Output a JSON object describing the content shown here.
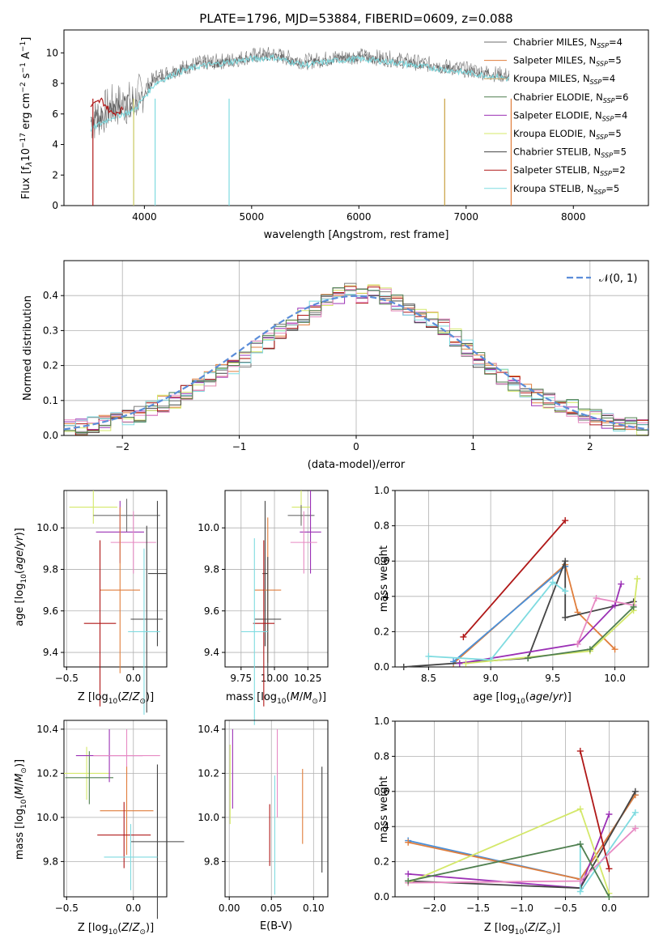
{
  "panels": {
    "spectrum": {
      "title": "PLATE=1796, MJD=53884, FIBERID=0609, z=0.088",
      "xlabel": "wavelength [Angstrom, rest frame]",
      "ylabel": "Flux [f_λ 10^-17 erg cm^-2 s^-1 A^-1]",
      "xlim": [
        3250,
        8700
      ],
      "ylim": [
        0,
        11.5
      ],
      "xticks": [
        4000,
        5000,
        6000,
        7000,
        8000
      ],
      "yticks": [
        0,
        2,
        4,
        6,
        8,
        10
      ],
      "legend_position": "top-right",
      "legend": [
        {
          "label": "Chabrier MILES, N",
          "sub": "SSP",
          "tail": "=4",
          "color": "#6e6e6e"
        },
        {
          "label": "Salpeter MILES, N",
          "sub": "SSP",
          "tail": "=5",
          "color": "#e07e3c"
        },
        {
          "label": "Kroupa MILES, N",
          "sub": "SSP",
          "tail": "=4",
          "color": "#d8a060"
        },
        {
          "label": "Chabrier ELODIE, N",
          "sub": "SSP",
          "tail": "=6",
          "color": "#4f7f4f"
        },
        {
          "label": "Salpeter ELODIE, N",
          "sub": "SSP",
          "tail": "=4",
          "color": "#9b30b5"
        },
        {
          "label": "Kroupa ELODIE, N",
          "sub": "SSP",
          "tail": "=5",
          "color": "#d4e86a"
        },
        {
          "label": "Chabrier STELIB, N",
          "sub": "SSP",
          "tail": "=5",
          "color": "#444444"
        },
        {
          "label": "Salpeter STELIB, N",
          "sub": "SSP",
          "tail": "=2",
          "color": "#b01818"
        },
        {
          "label": "Kroupa STELIB, N",
          "sub": "SSP",
          "tail": "=5",
          "color": "#7fdbe0"
        }
      ]
    },
    "histogram": {
      "xlabel": "(data-model)/error",
      "ylabel": "Normed distribution",
      "xlim": [
        -2.5,
        2.5
      ],
      "ylim": [
        0,
        0.5
      ],
      "xticks": [
        -2,
        -1,
        0,
        1,
        2
      ],
      "xticklabels": [
        "−2",
        "−1",
        "0",
        "1",
        "2"
      ],
      "yticks": [
        0.0,
        0.1,
        0.2,
        0.3,
        0.4
      ],
      "yticklabels": [
        "0.0",
        "0.1",
        "0.2",
        "0.3",
        "0.4"
      ],
      "legend_label": "𝒩(0, 1)",
      "grid": true
    },
    "z_age": {
      "xlabel": "Z [log10(Z/Z⊙)]",
      "ylabel": "age [log10(age/yr)]",
      "xlim": [
        -0.52,
        0.25
      ],
      "ylim": [
        9.33,
        10.18
      ],
      "xticks": [
        -0.5,
        0.0
      ],
      "xticklabels": [
        "−0.5",
        "0.0"
      ],
      "yticks": [
        9.4,
        9.6,
        9.8,
        10.0
      ],
      "yticklabels": [
        "9.4",
        "9.6",
        "9.8",
        "10.0"
      ]
    },
    "mass_age": {
      "xlabel": "mass [log10(M/M⊙)]",
      "xlim": [
        9.63,
        10.4
      ],
      "ylim": [
        9.33,
        10.18
      ],
      "xticks": [
        9.75,
        10.0,
        10.25
      ],
      "xticklabels": [
        "9.75",
        "10.00",
        "10.25"
      ],
      "yticks": [
        9.4,
        9.6,
        9.8,
        10.0
      ],
      "yticklabels": [
        "9.4",
        "9.6",
        "9.8",
        "10.0"
      ]
    },
    "age_weight": {
      "xlabel": "age [log10(age/yr)]",
      "ylabel": "mass weight",
      "xlim": [
        8.23,
        10.27
      ],
      "ylim": [
        0,
        1.0
      ],
      "xticks": [
        8.5,
        9.0,
        9.5,
        10.0
      ],
      "xticklabels": [
        "8.5",
        "9.0",
        "9.5",
        "10.0"
      ],
      "yticks": [
        0,
        0.2,
        0.4,
        0.6,
        0.8,
        1.0
      ],
      "yticklabels": [
        "0.0",
        "0.2",
        "0.4",
        "0.6",
        "0.8",
        "1.0"
      ]
    },
    "z_mass": {
      "xlabel": "Z [log10(Z/Z⊙)]",
      "ylabel": "mass [log10(M/M⊙)]",
      "xlim": [
        -0.52,
        0.25
      ],
      "ylim": [
        9.64,
        10.44
      ],
      "xticks": [
        -0.5,
        0.0
      ],
      "xticklabels": [
        "−0.5",
        "0.0"
      ],
      "yticks": [
        9.8,
        10.0,
        10.2,
        10.4
      ],
      "yticklabels": [
        "9.8",
        "10.0",
        "10.2",
        "10.4"
      ]
    },
    "ebv_mass": {
      "xlabel": "E(B-V)",
      "xlim": [
        -0.005,
        0.117
      ],
      "ylim": [
        9.64,
        10.44
      ],
      "xticks": [
        0.0,
        0.05,
        0.1
      ],
      "xticklabels": [
        "0.00",
        "0.05",
        "0.10"
      ],
      "yticks": [
        9.8,
        10.0,
        10.2,
        10.4
      ],
      "yticklabels": [
        "9.8",
        "10.0",
        "10.2",
        "10.4"
      ]
    },
    "z_weight": {
      "xlabel": "Z [log10(Z/Z⊙)]",
      "ylabel": "mass weight",
      "xlim": [
        -2.45,
        0.45
      ],
      "ylim": [
        0,
        1.0
      ],
      "xticks": [
        -2.0,
        -1.5,
        -1.0,
        -0.5,
        0.0
      ],
      "xticklabels": [
        "−2.0",
        "−1.5",
        "−1.0",
        "−0.5",
        "0.0"
      ],
      "yticks": [
        0,
        0.2,
        0.4,
        0.6,
        0.8,
        1.0
      ],
      "yticklabels": [
        "0.0",
        "0.2",
        "0.4",
        "0.6",
        "0.8",
        "1.0"
      ]
    }
  },
  "chart_data": [
    {
      "type": "line",
      "title": "PLATE=1796, MJD=53884, FIBERID=0609, z=0.088",
      "xlabel": "wavelength [Angstrom, rest frame]",
      "ylabel": "Flux [fλ10−17 erg cm−2 s−1 A−1]",
      "xlim": [
        3250,
        8700
      ],
      "ylim": [
        0,
        11.5
      ],
      "series": [
        {
          "name": "Chabrier MILES, NSSP=4",
          "x": [
            3500,
            3700,
            3900,
            4100,
            4300,
            4500,
            4800,
            5000,
            5200,
            5500,
            5800,
            6000,
            6300,
            6600,
            6900,
            7100,
            7300,
            7400
          ],
          "values": [
            5.5,
            6.5,
            6.8,
            8.4,
            8.9,
            9.3,
            9.5,
            9.8,
            9.9,
            9.4,
            9.7,
            9.8,
            9.6,
            9.3,
            9.0,
            8.8,
            8.6,
            8.5
          ]
        },
        {
          "name": "Chabrier STELIB, NSSP=5",
          "x": [
            3500,
            3700,
            3900,
            4100,
            4300,
            4500,
            4800,
            5000,
            5200,
            5500,
            5800,
            6000,
            6300,
            6600,
            6900,
            7100,
            7300,
            7400
          ],
          "values": [
            5.3,
            6.3,
            6.6,
            8.2,
            8.8,
            9.2,
            9.4,
            9.7,
            9.8,
            9.3,
            9.6,
            9.7,
            9.5,
            9.2,
            8.9,
            8.7,
            8.5,
            8.4
          ]
        },
        {
          "name": "Kroupa STELIB, NSSP=5",
          "x": [
            3500,
            3700,
            3900,
            4100,
            4300,
            4500,
            4800,
            5000,
            5200,
            5500,
            5800,
            6000,
            6300,
            6600,
            6900,
            7100,
            7300,
            7400
          ],
          "values": [
            5.0,
            5.8,
            6.2,
            8.0,
            8.7,
            9.1,
            9.4,
            9.6,
            9.7,
            9.2,
            9.5,
            9.6,
            9.4,
            9.1,
            8.8,
            8.6,
            8.4,
            8.3
          ]
        },
        {
          "name": "Salpeter STELIB, NSSP=2",
          "x": [
            3500,
            3600,
            3700,
            3800
          ],
          "values": [
            6.5,
            6.9,
            6.0,
            6.3
          ]
        }
      ]
    },
    {
      "type": "bar",
      "xlabel": "(data-model)/error",
      "ylabel": "Normed distribution",
      "xlim": [
        -2.5,
        2.5
      ],
      "ylim": [
        0,
        0.5
      ],
      "bin_edges_start": -2.5,
      "bin_width": 0.1,
      "series": [
        {
          "name": "𝒩(0, 1)",
          "function": "normal",
          "mean": 0,
          "sigma": 1
        }
      ],
      "histogram_values": [
        0.02,
        0.025,
        0.03,
        0.035,
        0.045,
        0.05,
        0.06,
        0.075,
        0.09,
        0.1,
        0.12,
        0.14,
        0.16,
        0.18,
        0.2,
        0.22,
        0.25,
        0.27,
        0.3,
        0.32,
        0.34,
        0.36,
        0.38,
        0.4,
        0.42,
        0.4,
        0.41,
        0.4,
        0.38,
        0.36,
        0.34,
        0.33,
        0.31,
        0.28,
        0.25,
        0.22,
        0.2,
        0.17,
        0.15,
        0.13,
        0.11,
        0.1,
        0.09,
        0.08,
        0.06,
        0.05,
        0.045,
        0.035,
        0.03,
        0.025
      ]
    },
    {
      "type": "scatter",
      "xlabel": "Z [log10(Z/Z⊙)]",
      "ylabel": "age [log10(age/yr)]",
      "points": [
        {
          "x": -0.3,
          "y": 10.1,
          "xerr": 0.18,
          "yerr": 0.08,
          "color": "#d4e86a"
        },
        {
          "x": -0.05,
          "y": 10.06,
          "xerr": 0.25,
          "yerr": 0.08,
          "color": "#6e6e6e"
        },
        {
          "x": -0.1,
          "y": 9.98,
          "xerr": 0.18,
          "yerr": 0.15,
          "color": "#9b30b5"
        },
        {
          "x": 0.0,
          "y": 9.93,
          "xerr": 0.17,
          "yerr": 0.15,
          "color": "#e78ac3"
        },
        {
          "x": 0.18,
          "y": 9.78,
          "xerr": 0.07,
          "yerr": 0.35,
          "color": "#444444"
        },
        {
          "x": -0.1,
          "y": 9.7,
          "xerr": 0.15,
          "yerr": 0.4,
          "color": "#e07e3c"
        },
        {
          "x": 0.1,
          "y": 9.56,
          "xerr": 0.12,
          "yerr": 0.45,
          "color": "#444444"
        },
        {
          "x": -0.25,
          "y": 9.54,
          "xerr": 0.12,
          "yerr": 0.4,
          "color": "#b01818"
        },
        {
          "x": 0.08,
          "y": 9.5,
          "xerr": 0.12,
          "yerr": 0.4,
          "color": "#7fdbe0"
        }
      ]
    },
    {
      "type": "scatter",
      "xlabel": "mass [log10(M/M⊙)]",
      "points": [
        {
          "x": 10.2,
          "y": 10.1,
          "xerr": 0.07,
          "yerr": 0.08,
          "color": "#d4e86a"
        },
        {
          "x": 10.2,
          "y": 10.06,
          "xerr": 0.1,
          "yerr": 0.05,
          "color": "#6e6e6e"
        },
        {
          "x": 10.27,
          "y": 9.98,
          "xerr": 0.08,
          "yerr": 0.2,
          "color": "#9b30b5"
        },
        {
          "x": 10.22,
          "y": 9.93,
          "xerr": 0.1,
          "yerr": 0.15,
          "color": "#e78ac3"
        },
        {
          "x": 9.93,
          "y": 9.78,
          "xerr": 0.02,
          "yerr": 0.35,
          "color": "#444444"
        },
        {
          "x": 9.95,
          "y": 9.7,
          "xerr": 0.1,
          "yerr": 0.35,
          "color": "#e07e3c"
        },
        {
          "x": 9.95,
          "y": 9.56,
          "xerr": 0.1,
          "yerr": 0.3,
          "color": "#444444"
        },
        {
          "x": 9.92,
          "y": 9.54,
          "xerr": 0.08,
          "yerr": 0.4,
          "color": "#b01818"
        },
        {
          "x": 9.85,
          "y": 9.5,
          "xerr": 0.1,
          "yerr": 0.45,
          "color": "#7fdbe0"
        }
      ]
    },
    {
      "type": "line",
      "xlabel": "age [log10(age/yr)]",
      "ylabel": "mass weight",
      "xlim": [
        8.23,
        10.27
      ],
      "ylim": [
        0,
        1.0
      ],
      "series": [
        {
          "name": "",
          "color": "#b01818",
          "x": [
            8.78,
            9.6
          ],
          "values": [
            0.17,
            0.83
          ]
        },
        {
          "name": "",
          "color": "#e07e3c",
          "x": [
            8.7,
            9.6,
            9.7,
            10.0
          ],
          "values": [
            0.02,
            0.58,
            0.31,
            0.1
          ]
        },
        {
          "name": "",
          "color": "#4a90d9",
          "x": [
            8.7,
            9.6
          ],
          "values": [
            0.03,
            0.57
          ]
        },
        {
          "name": "",
          "color": "#444444",
          "x": [
            8.3,
            9.3,
            9.6,
            9.6,
            10.15
          ],
          "values": [
            0.0,
            0.05,
            0.6,
            0.28,
            0.37
          ]
        },
        {
          "name": "",
          "color": "#9b30b5",
          "x": [
            8.75,
            9.7,
            10.0,
            10.05
          ],
          "values": [
            0.02,
            0.13,
            0.35,
            0.47
          ]
        },
        {
          "name": "",
          "color": "#7fdbe0",
          "x": [
            8.5,
            9.0,
            9.5,
            9.6
          ],
          "values": [
            0.06,
            0.04,
            0.48,
            0.43
          ]
        },
        {
          "name": "",
          "color": "#d4e86a",
          "x": [
            8.8,
            9.8,
            10.15,
            10.18
          ],
          "values": [
            0.02,
            0.09,
            0.32,
            0.5
          ]
        },
        {
          "name": "",
          "color": "#e78ac3",
          "x": [
            9.7,
            9.85,
            10.15
          ],
          "values": [
            0.13,
            0.39,
            0.35
          ]
        },
        {
          "name": "",
          "color": "#4f7f4f",
          "x": [
            9.3,
            9.8,
            10.15
          ],
          "values": [
            0.05,
            0.1,
            0.34
          ]
        }
      ]
    },
    {
      "type": "scatter",
      "xlabel": "Z [log10(Z/Z⊙)]",
      "ylabel": "mass [log10(M/M⊙)]",
      "points": [
        {
          "x": -0.35,
          "y": 10.2,
          "xerr": 0.17,
          "yerr": 0.12,
          "color": "#d4e86a"
        },
        {
          "x": -0.33,
          "y": 10.18,
          "xerr": 0.18,
          "yerr": 0.12,
          "color": "#4f7f4f"
        },
        {
          "x": -0.18,
          "y": 10.28,
          "xerr": 0.25,
          "yerr": 0.12,
          "color": "#9b30b5"
        },
        {
          "x": -0.05,
          "y": 10.28,
          "xerr": 0.25,
          "yerr": 0.12,
          "color": "#e78ac3"
        },
        {
          "x": 0.18,
          "y": 9.89,
          "xerr": 0.2,
          "yerr": 0.35,
          "color": "#444444"
        },
        {
          "x": -0.05,
          "y": 10.03,
          "xerr": 0.2,
          "yerr": 0.2,
          "color": "#e07e3c"
        },
        {
          "x": -0.07,
          "y": 9.92,
          "xerr": 0.2,
          "yerr": 0.15,
          "color": "#b01818"
        },
        {
          "x": -0.02,
          "y": 9.82,
          "xerr": 0.2,
          "yerr": 0.15,
          "color": "#7fdbe0"
        }
      ]
    },
    {
      "type": "scatter",
      "xlabel": "E(B-V)",
      "points": [
        {
          "x": 0.001,
          "y": 10.15,
          "yerr": 0.18,
          "color": "#d4e86a"
        },
        {
          "x": 0.004,
          "y": 10.22,
          "yerr": 0.18,
          "color": "#9b30b5"
        },
        {
          "x": 0.048,
          "y": 9.92,
          "yerr": 0.14,
          "color": "#b01818"
        },
        {
          "x": 0.054,
          "y": 9.92,
          "yerr": 0.27,
          "color": "#7fdbe0"
        },
        {
          "x": 0.057,
          "y": 10.2,
          "yerr": 0.2,
          "color": "#e78ac3"
        },
        {
          "x": 0.087,
          "y": 10.05,
          "yerr": 0.17,
          "color": "#e07e3c"
        },
        {
          "x": 0.11,
          "y": 9.99,
          "yerr": 0.24,
          "color": "#444444"
        }
      ]
    },
    {
      "type": "line",
      "xlabel": "Z [log10(Z/Z⊙)]",
      "ylabel": "mass weight",
      "xlim": [
        -2.45,
        0.45
      ],
      "ylim": [
        0,
        1.0
      ],
      "series": [
        {
          "name": "",
          "color": "#4a90d9",
          "x": [
            -2.3,
            -0.33,
            0.3
          ],
          "values": [
            0.32,
            0.1,
            0.58
          ]
        },
        {
          "name": "",
          "color": "#e07e3c",
          "x": [
            -2.3,
            -0.33,
            0.3
          ],
          "values": [
            0.31,
            0.1,
            0.58
          ]
        },
        {
          "name": "",
          "color": "#9b30b5",
          "x": [
            -2.3,
            -0.33,
            0.0
          ],
          "values": [
            0.13,
            0.05,
            0.47
          ]
        },
        {
          "name": "",
          "color": "#444444",
          "x": [
            -2.3,
            -0.33,
            0.3
          ],
          "values": [
            0.09,
            0.05,
            0.6
          ]
        },
        {
          "name": "",
          "color": "#d4e86a",
          "x": [
            -2.3,
            -0.33,
            0.0
          ],
          "values": [
            0.08,
            0.5,
            0.02
          ]
        },
        {
          "name": "",
          "color": "#7fdbe0",
          "x": [
            -0.33,
            -0.33,
            0.3
          ],
          "values": [
            0.3,
            0.03,
            0.48
          ]
        },
        {
          "name": "",
          "color": "#b01818",
          "x": [
            -0.33,
            0.0
          ],
          "values": [
            0.83,
            0.16
          ]
        },
        {
          "name": "",
          "color": "#e78ac3",
          "x": [
            -2.3,
            -0.33,
            0.3
          ],
          "values": [
            0.08,
            0.09,
            0.39
          ]
        },
        {
          "name": "",
          "color": "#4f7f4f",
          "x": [
            -2.3,
            -0.33,
            0.0
          ],
          "values": [
            0.09,
            0.3,
            0.0
          ]
        }
      ]
    }
  ]
}
